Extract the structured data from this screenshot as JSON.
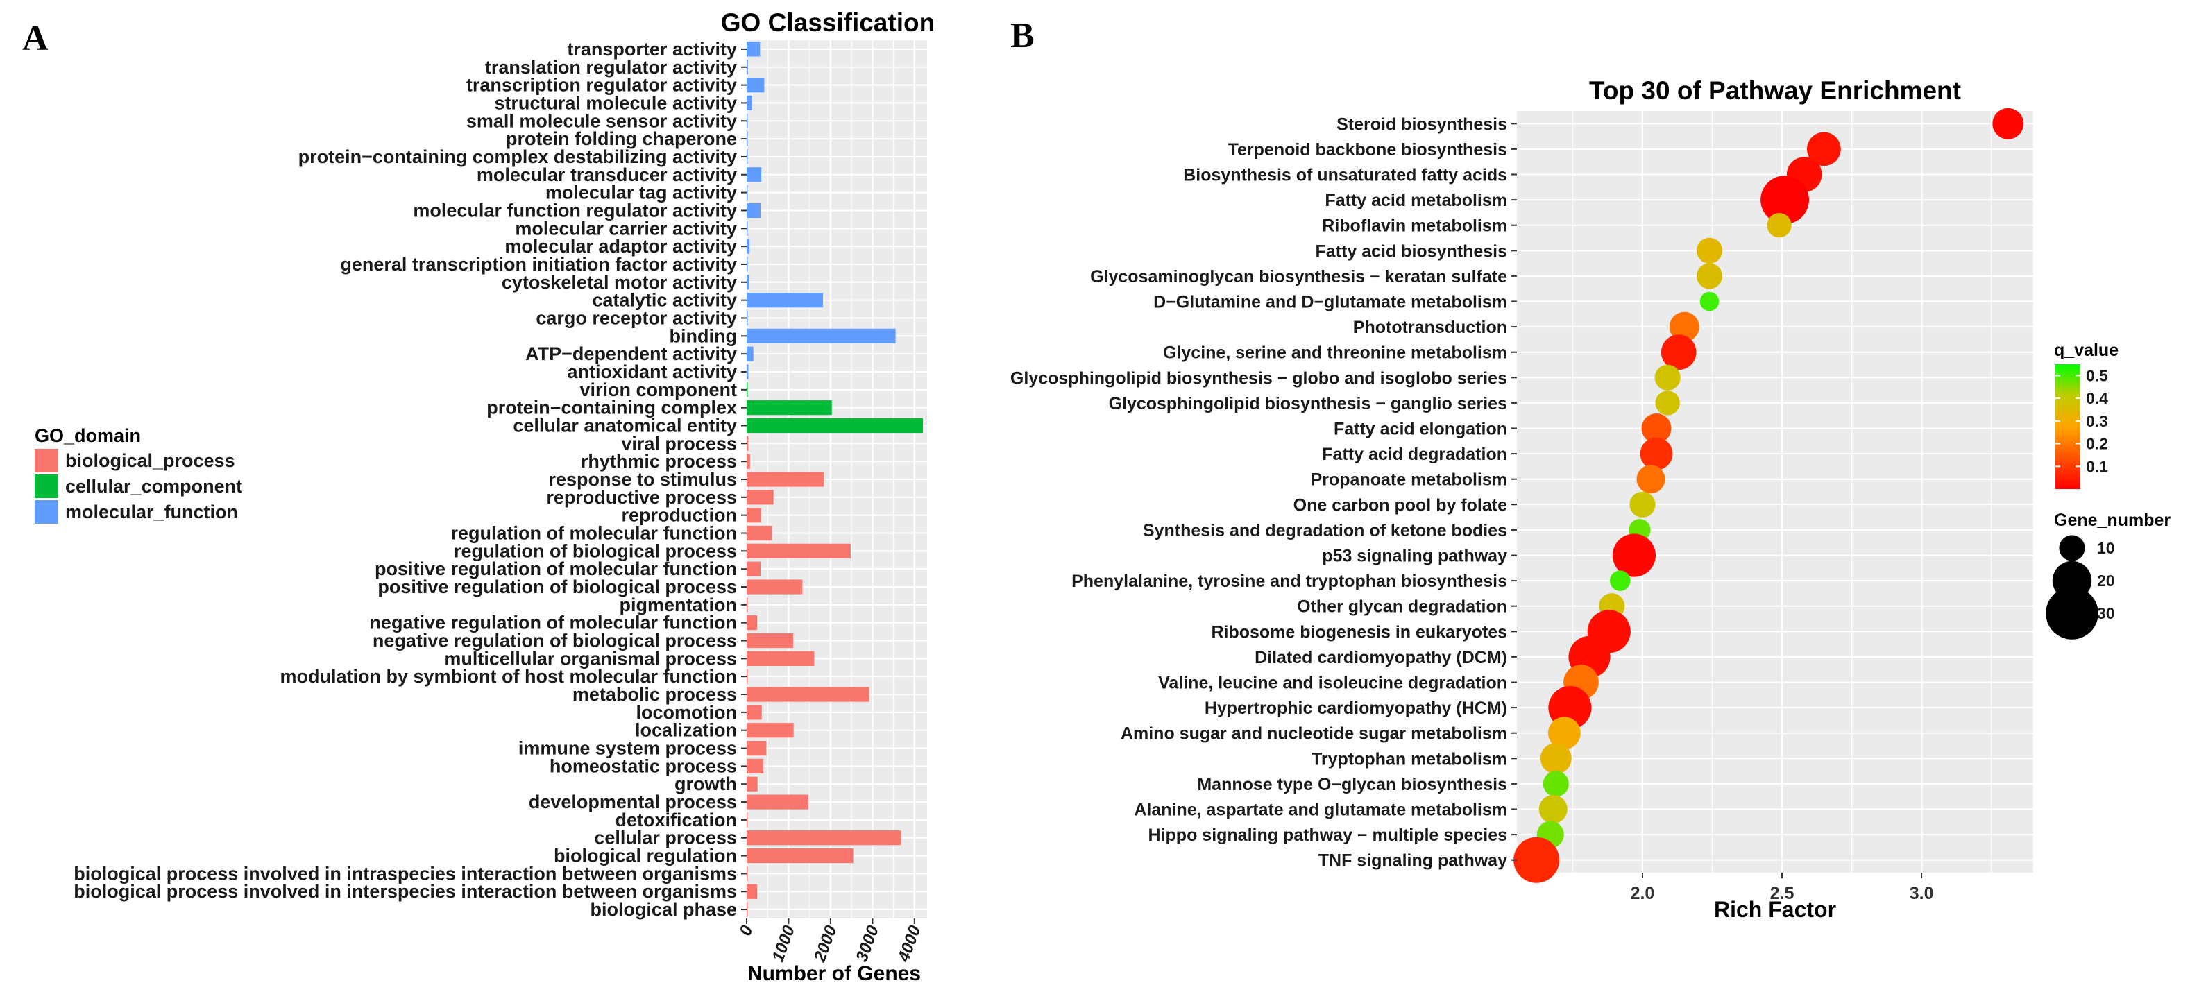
{
  "panels": {
    "a_label": "A",
    "b_label": "B"
  },
  "colors": {
    "biological_process": "#F8766D",
    "cellular_component": "#00BA38",
    "molecular_function": "#619CFF",
    "panel_bg": "#EBEBEB",
    "grid": "#FFFFFF",
    "q_low": "#FF0000",
    "q_high": "#00FF00"
  },
  "chart_data": [
    {
      "type": "bar",
      "orientation": "horizontal",
      "title": "GO Classification",
      "xlabel": "Number of Genes",
      "ylabel": "",
      "xlim": [
        0,
        4300
      ],
      "xticks": [
        0,
        1000,
        2000,
        3000,
        4000
      ],
      "xtick_labels": [
        "0",
        "1000",
        "2000",
        "3000",
        "4000"
      ],
      "legend": {
        "title": "GO_domain",
        "position": "left",
        "entries": [
          "biological_process",
          "cellular_component",
          "molecular_function"
        ]
      },
      "categories": [
        {
          "label": "transporter activity",
          "value": 320,
          "domain": "molecular_function"
        },
        {
          "label": "translation regulator activity",
          "value": 30,
          "domain": "molecular_function"
        },
        {
          "label": "transcription regulator activity",
          "value": 420,
          "domain": "molecular_function"
        },
        {
          "label": "structural molecule activity",
          "value": 130,
          "domain": "molecular_function"
        },
        {
          "label": "small molecule sensor activity",
          "value": 5,
          "domain": "molecular_function"
        },
        {
          "label": "protein folding chaperone",
          "value": 10,
          "domain": "molecular_function"
        },
        {
          "label": "protein−containing complex destabilizing activity",
          "value": 3,
          "domain": "molecular_function"
        },
        {
          "label": "molecular transducer activity",
          "value": 350,
          "domain": "molecular_function"
        },
        {
          "label": "molecular tag activity",
          "value": 8,
          "domain": "molecular_function"
        },
        {
          "label": "molecular function regulator activity",
          "value": 330,
          "domain": "molecular_function"
        },
        {
          "label": "molecular carrier activity",
          "value": 15,
          "domain": "molecular_function"
        },
        {
          "label": "molecular adaptor activity",
          "value": 70,
          "domain": "molecular_function"
        },
        {
          "label": "general transcription initiation factor activity",
          "value": 20,
          "domain": "molecular_function"
        },
        {
          "label": "cytoskeletal motor activity",
          "value": 50,
          "domain": "molecular_function"
        },
        {
          "label": "catalytic activity",
          "value": 1820,
          "domain": "molecular_function"
        },
        {
          "label": "cargo receptor activity",
          "value": 10,
          "domain": "molecular_function"
        },
        {
          "label": "binding",
          "value": 3550,
          "domain": "molecular_function"
        },
        {
          "label": "ATP−dependent activity",
          "value": 160,
          "domain": "molecular_function"
        },
        {
          "label": "antioxidant activity",
          "value": 40,
          "domain": "molecular_function"
        },
        {
          "label": "virion component",
          "value": 2,
          "domain": "cellular_component"
        },
        {
          "label": "protein−containing complex",
          "value": 2030,
          "domain": "cellular_component"
        },
        {
          "label": "cellular anatomical entity",
          "value": 4200,
          "domain": "cellular_component"
        },
        {
          "label": "viral process",
          "value": 40,
          "domain": "biological_process"
        },
        {
          "label": "rhythmic process",
          "value": 80,
          "domain": "biological_process"
        },
        {
          "label": "response to stimulus",
          "value": 1840,
          "domain": "biological_process"
        },
        {
          "label": "reproductive process",
          "value": 640,
          "domain": "biological_process"
        },
        {
          "label": "reproduction",
          "value": 340,
          "domain": "biological_process"
        },
        {
          "label": "regulation of molecular function",
          "value": 600,
          "domain": "biological_process"
        },
        {
          "label": "regulation of biological process",
          "value": 2480,
          "domain": "biological_process"
        },
        {
          "label": "positive regulation of molecular function",
          "value": 330,
          "domain": "biological_process"
        },
        {
          "label": "positive regulation of biological process",
          "value": 1330,
          "domain": "biological_process"
        },
        {
          "label": "pigmentation",
          "value": 10,
          "domain": "biological_process"
        },
        {
          "label": "negative regulation of molecular function",
          "value": 250,
          "domain": "biological_process"
        },
        {
          "label": "negative regulation of biological process",
          "value": 1110,
          "domain": "biological_process"
        },
        {
          "label": "multicellular organismal process",
          "value": 1610,
          "domain": "biological_process"
        },
        {
          "label": "modulation by symbiont of host molecular function",
          "value": 3,
          "domain": "biological_process"
        },
        {
          "label": "metabolic process",
          "value": 2920,
          "domain": "biological_process"
        },
        {
          "label": "locomotion",
          "value": 360,
          "domain": "biological_process"
        },
        {
          "label": "localization",
          "value": 1120,
          "domain": "biological_process"
        },
        {
          "label": "immune system process",
          "value": 470,
          "domain": "biological_process"
        },
        {
          "label": "homeostatic process",
          "value": 400,
          "domain": "biological_process"
        },
        {
          "label": "growth",
          "value": 260,
          "domain": "biological_process"
        },
        {
          "label": "developmental process",
          "value": 1470,
          "domain": "biological_process"
        },
        {
          "label": "detoxification",
          "value": 20,
          "domain": "biological_process"
        },
        {
          "label": "cellular process",
          "value": 3680,
          "domain": "biological_process"
        },
        {
          "label": "biological regulation",
          "value": 2540,
          "domain": "biological_process"
        },
        {
          "label": "biological process involved in intraspecies interaction between organisms",
          "value": 5,
          "domain": "biological_process"
        },
        {
          "label": "biological process involved in interspecies interaction between organisms",
          "value": 250,
          "domain": "biological_process"
        },
        {
          "label": "biological phase",
          "value": 3,
          "domain": "biological_process"
        }
      ]
    },
    {
      "type": "scatter",
      "title": "Top 30 of Pathway Enrichment",
      "xlabel": "Rich Factor",
      "ylabel": "",
      "xlim": [
        1.55,
        3.4
      ],
      "xticks": [
        2.0,
        2.5,
        3.0
      ],
      "xtick_labels": [
        "2.0",
        "2.5",
        "3.0"
      ],
      "color_legend": {
        "title": "q_value",
        "range": [
          0.0,
          0.55
        ],
        "ticks": [
          0.5,
          0.4,
          0.3,
          0.2,
          0.1
        ],
        "tick_labels": [
          "0.5",
          "0.4",
          "0.3",
          "0.2",
          "0.1"
        ]
      },
      "size_legend": {
        "title": "Gene_number",
        "values": [
          10,
          20,
          30
        ],
        "labels": [
          "10",
          "20",
          "30"
        ]
      },
      "points": [
        {
          "pathway": "Steroid biosynthesis",
          "rich_factor": 3.31,
          "q_value": 0.01,
          "gene_number": 14
        },
        {
          "pathway": "Terpenoid backbone biosynthesis",
          "rich_factor": 2.65,
          "q_value": 0.03,
          "gene_number": 16
        },
        {
          "pathway": "Biosynthesis of unsaturated fatty acids",
          "rich_factor": 2.58,
          "q_value": 0.02,
          "gene_number": 17
        },
        {
          "pathway": "Fatty acid metabolism",
          "rich_factor": 2.51,
          "q_value": 0.0,
          "gene_number": 27
        },
        {
          "pathway": "Riboflavin metabolism",
          "rich_factor": 2.49,
          "q_value": 0.33,
          "gene_number": 9
        },
        {
          "pathway": "Fatty acid biosynthesis",
          "rich_factor": 2.24,
          "q_value": 0.32,
          "gene_number": 10
        },
        {
          "pathway": "Glycosaminoglycan biosynthesis − keratan sulfate",
          "rich_factor": 2.24,
          "q_value": 0.34,
          "gene_number": 10
        },
        {
          "pathway": "D−Glutamine and D−glutamate metabolism",
          "rich_factor": 2.24,
          "q_value": 0.5,
          "gene_number": 5
        },
        {
          "pathway": "Phototransduction",
          "rich_factor": 2.15,
          "q_value": 0.17,
          "gene_number": 13
        },
        {
          "pathway": "Glycine, serine and threonine metabolism",
          "rich_factor": 2.13,
          "q_value": 0.04,
          "gene_number": 17
        },
        {
          "pathway": "Glycosphingolipid biosynthesis − globo and isoglobo series",
          "rich_factor": 2.09,
          "q_value": 0.36,
          "gene_number": 10
        },
        {
          "pathway": "Glycosphingolipid biosynthesis − ganglio series",
          "rich_factor": 2.09,
          "q_value": 0.36,
          "gene_number": 9
        },
        {
          "pathway": "Fatty acid elongation",
          "rich_factor": 2.05,
          "q_value": 0.12,
          "gene_number": 13
        },
        {
          "pathway": "Fatty acid degradation",
          "rich_factor": 2.05,
          "q_value": 0.07,
          "gene_number": 15
        },
        {
          "pathway": "Propanoate metabolism",
          "rich_factor": 2.03,
          "q_value": 0.17,
          "gene_number": 12
        },
        {
          "pathway": "One carbon pool by folate",
          "rich_factor": 2.0,
          "q_value": 0.37,
          "gene_number": 10
        },
        {
          "pathway": "Synthesis and degradation of ketone bodies",
          "rich_factor": 1.99,
          "q_value": 0.47,
          "gene_number": 7
        },
        {
          "pathway": "p53 signaling pathway",
          "rich_factor": 1.97,
          "q_value": 0.01,
          "gene_number": 23
        },
        {
          "pathway": "Phenylalanine, tyrosine and tryptophan biosynthesis",
          "rich_factor": 1.92,
          "q_value": 0.5,
          "gene_number": 6
        },
        {
          "pathway": "Other glycan degradation",
          "rich_factor": 1.89,
          "q_value": 0.35,
          "gene_number": 10
        },
        {
          "pathway": "Ribosome biogenesis in eukaryotes",
          "rich_factor": 1.88,
          "q_value": 0.02,
          "gene_number": 23
        },
        {
          "pathway": "Dilated cardiomyopathy (DCM)",
          "rich_factor": 1.81,
          "q_value": 0.02,
          "gene_number": 22
        },
        {
          "pathway": "Valine, leucine and isoleucine degradation",
          "rich_factor": 1.78,
          "q_value": 0.17,
          "gene_number": 17
        },
        {
          "pathway": "Hypertrophic cardiomyopathy (HCM)",
          "rich_factor": 1.74,
          "q_value": 0.02,
          "gene_number": 23
        },
        {
          "pathway": "Amino sugar and nucleotide sugar metabolism",
          "rich_factor": 1.72,
          "q_value": 0.27,
          "gene_number": 15
        },
        {
          "pathway": "Tryptophan metabolism",
          "rich_factor": 1.69,
          "q_value": 0.31,
          "gene_number": 14
        },
        {
          "pathway": "Mannose type O−glycan biosynthesis",
          "rich_factor": 1.69,
          "q_value": 0.47,
          "gene_number": 10
        },
        {
          "pathway": "Alanine, aspartate and glutamate metabolism",
          "rich_factor": 1.68,
          "q_value": 0.37,
          "gene_number": 12
        },
        {
          "pathway": "Hippo signaling pathway − multiple species",
          "rich_factor": 1.67,
          "q_value": 0.46,
          "gene_number": 11
        },
        {
          "pathway": "TNF signaling pathway",
          "rich_factor": 1.62,
          "q_value": 0.06,
          "gene_number": 25
        }
      ]
    }
  ]
}
